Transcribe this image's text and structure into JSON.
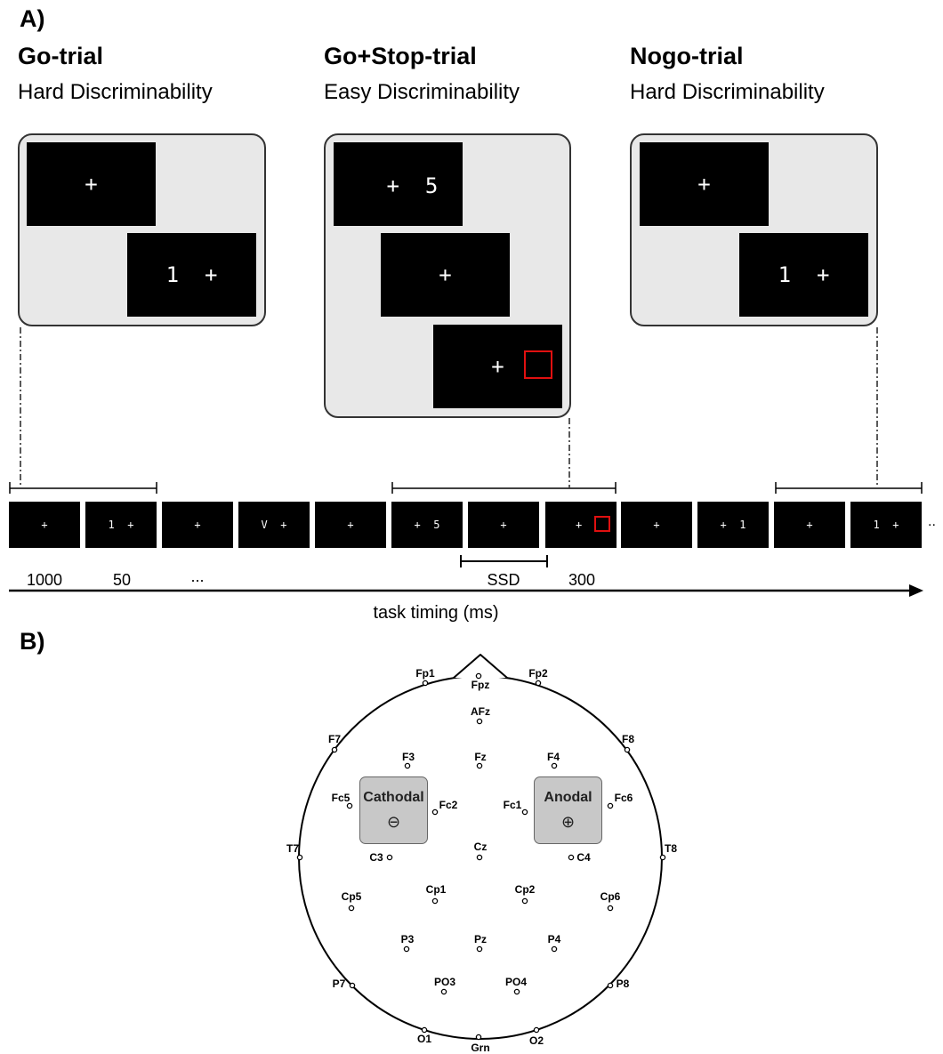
{
  "panel_a": {
    "label": "A)",
    "trials": [
      {
        "title": "Go-trial",
        "subtitle": "Hard Discriminability",
        "screens": [
          "+",
          "1  +"
        ]
      },
      {
        "title": "Go+Stop-trial",
        "subtitle": "Easy Discriminability",
        "screens": [
          "+  5",
          "+",
          "+"
        ]
      },
      {
        "title": "Nogo-trial",
        "subtitle": "Hard Discriminability",
        "screens": [
          "+",
          "1  +"
        ]
      }
    ],
    "timeline": {
      "screens": [
        "+",
        "1  +",
        "+",
        "V  +",
        "+",
        "+  5",
        "+",
        "+",
        "+",
        "+  1",
        "+",
        "1  +"
      ],
      "trailing_ellipsis": "..",
      "labels": {
        "t1000": "1000",
        "t50": "50",
        "dots": "...",
        "ssd": "SSD",
        "t300": "300"
      },
      "axis_label": "task timing (ms)"
    },
    "stop_signal_color": "#e01010"
  },
  "panel_b": {
    "label": "B)",
    "electrodes": [
      "Fp1",
      "Fp2",
      "Fpz",
      "AFz",
      "F7",
      "F8",
      "F3",
      "Fz",
      "F4",
      "Fc5",
      "Fc2",
      "Fc1",
      "Fc6",
      "T7",
      "T8",
      "C3",
      "Cz",
      "C4",
      "Cp5",
      "Cp1",
      "Cp2",
      "Cp6",
      "P3",
      "Pz",
      "P4",
      "P7",
      "PO3",
      "PO4",
      "P8",
      "O1",
      "Grn",
      "O2"
    ],
    "cathodal": {
      "label": "Cathodal",
      "symbol": "⊖"
    },
    "anodal": {
      "label": "Anodal",
      "symbol": "⊕"
    }
  }
}
